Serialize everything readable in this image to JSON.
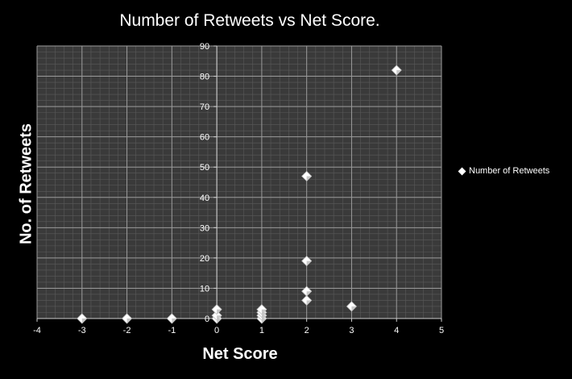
{
  "chart_data": {
    "type": "scatter",
    "title": "Number of Retweets vs Net Score.",
    "xlabel": "Net Score",
    "ylabel": "No. of Retweets",
    "xlim": [
      -4,
      5
    ],
    "ylim": [
      0,
      90
    ],
    "x_ticks": [
      "-4",
      "-3",
      "-2",
      "-1",
      "0",
      "1",
      "2",
      "3",
      "4",
      "5"
    ],
    "y_ticks": [
      "0",
      "10",
      "20",
      "30",
      "40",
      "50",
      "60",
      "70",
      "80",
      "90"
    ],
    "grid": true,
    "legend_position": "right",
    "series": [
      {
        "name": "Number of Retweets",
        "points": [
          {
            "x": -3,
            "y": 0
          },
          {
            "x": -2,
            "y": 0
          },
          {
            "x": -1,
            "y": 0
          },
          {
            "x": 0,
            "y": 0
          },
          {
            "x": 0,
            "y": 1
          },
          {
            "x": 0,
            "y": 3
          },
          {
            "x": 1,
            "y": 0
          },
          {
            "x": 1,
            "y": 1
          },
          {
            "x": 1,
            "y": 2
          },
          {
            "x": 1,
            "y": 3
          },
          {
            "x": 2,
            "y": 6
          },
          {
            "x": 2,
            "y": 9
          },
          {
            "x": 2,
            "y": 19
          },
          {
            "x": 2,
            "y": 47
          },
          {
            "x": 3,
            "y": 4
          },
          {
            "x": 4,
            "y": 82
          }
        ]
      }
    ]
  },
  "colors": {
    "background": "#000000",
    "plot_area": "#3a3a3a",
    "minor_grid": "#5a5a5a",
    "major_grid": "#9a9a9a",
    "marker": "#ffffff"
  }
}
